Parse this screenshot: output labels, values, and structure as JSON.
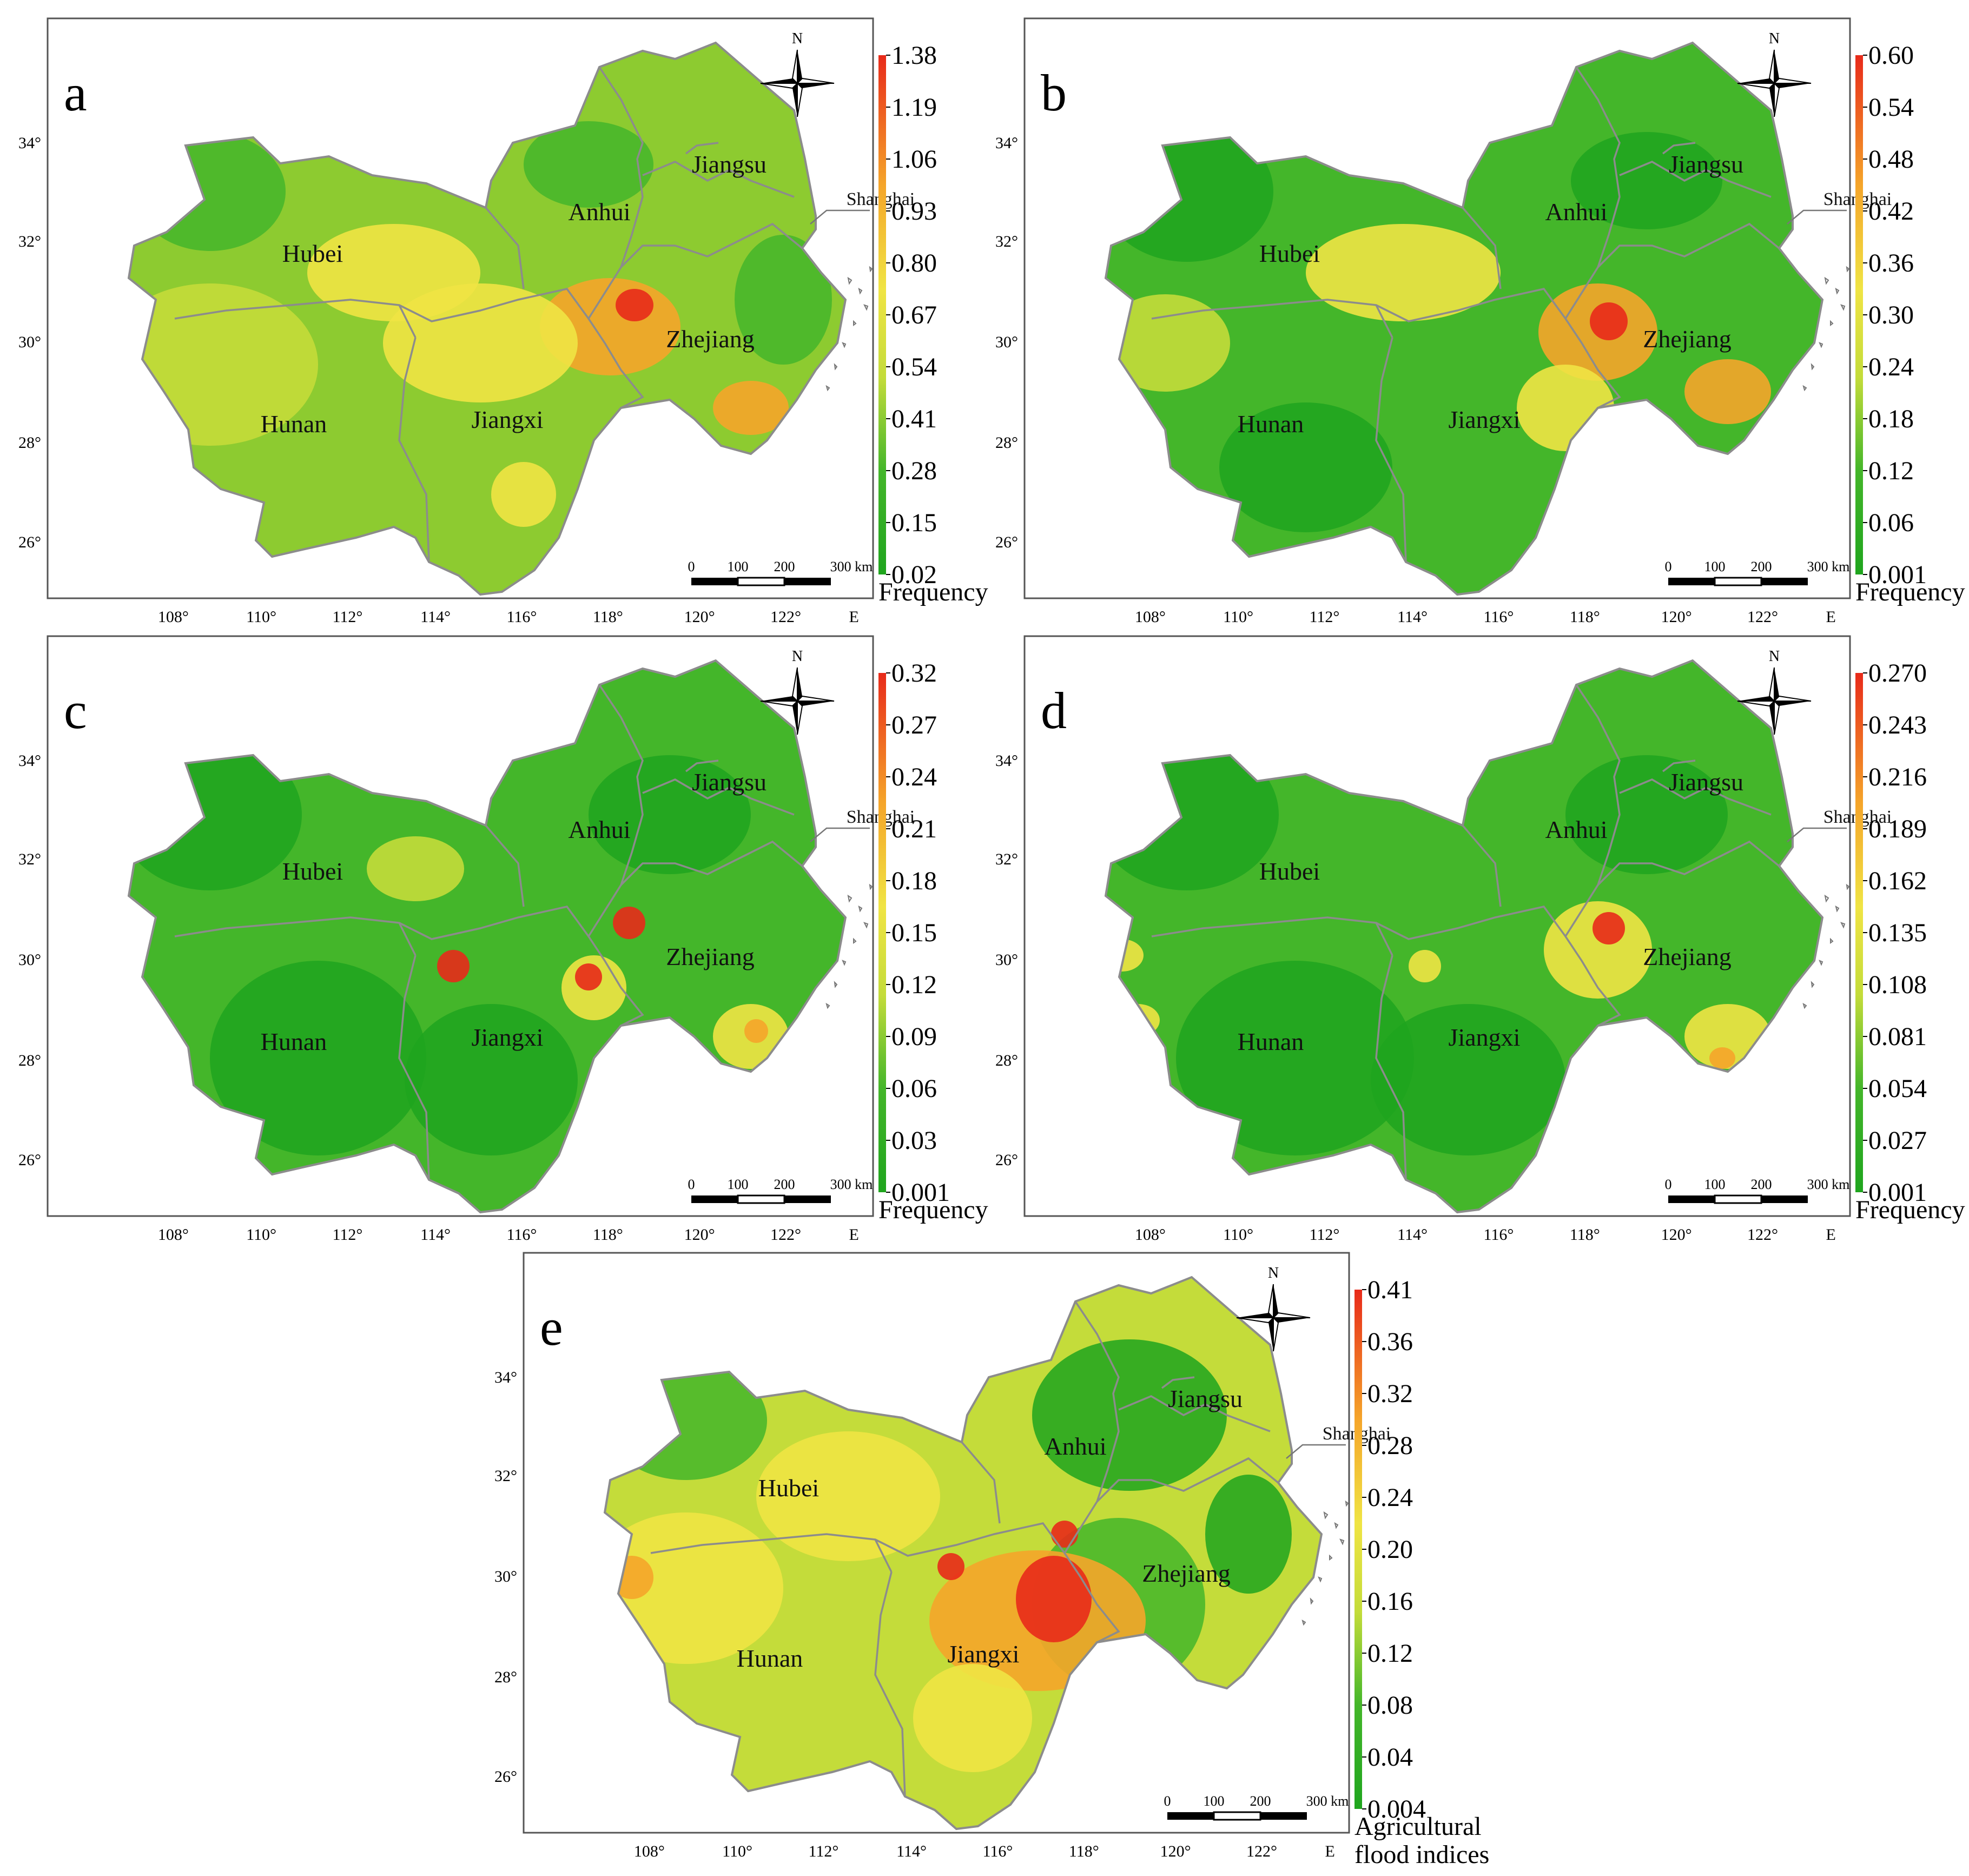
{
  "axes": {
    "lon_labels": [
      "108°",
      "110°",
      "112°",
      "114°",
      "116°",
      "118°",
      "120°",
      "122°"
    ],
    "lon_unit": "E",
    "lat_labels": [
      "34°",
      "32°",
      "30°",
      "28°",
      "26°"
    ]
  },
  "map_labels": {
    "provinces": [
      "Hubei",
      "Anhui",
      "Jiangsu",
      "Shanghai",
      "Zhejiang",
      "Hunan",
      "Jiangxi"
    ],
    "north": "N",
    "scale": [
      "0",
      "100",
      "200",
      "300 km"
    ]
  },
  "colors": {
    "dark_green": "#1fa51e",
    "green": "#44b62a",
    "light_green": "#8dcb30",
    "yellow_green": "#c4dc3a",
    "yellow": "#f0e444",
    "orange": "#f5a52a",
    "red": "#e82a1a",
    "boundary": "#8c8c8c"
  },
  "panels": [
    {
      "letter": "a",
      "legend_title": "Frequency",
      "legend_title_2": "",
      "legend_ticks": [
        "1.38",
        "1.19",
        "1.06",
        "0.93",
        "0.80",
        "0.67",
        "0.54",
        "0.41",
        "0.28",
        "0.15",
        "0.02"
      ]
    },
    {
      "letter": "b",
      "legend_title": "Frequency",
      "legend_title_2": "",
      "legend_ticks": [
        "0.60",
        "0.54",
        "0.48",
        "0.42",
        "0.36",
        "0.30",
        "0.24",
        "0.18",
        "0.12",
        "0.06",
        "0.001"
      ]
    },
    {
      "letter": "c",
      "legend_title": "Frequency",
      "legend_title_2": "",
      "legend_ticks": [
        "0.32",
        "0.27",
        "0.24",
        "0.21",
        "0.18",
        "0.15",
        "0.12",
        "0.09",
        "0.06",
        "0.03",
        "0.001"
      ]
    },
    {
      "letter": "d",
      "legend_title": "Frequency",
      "legend_title_2": "",
      "legend_ticks": [
        "0.270",
        "0.243",
        "0.216",
        "0.189",
        "0.162",
        "0.135",
        "0.108",
        "0.081",
        "0.054",
        "0.027",
        "0.001"
      ]
    },
    {
      "letter": "e",
      "legend_title": "Agricultural",
      "legend_title_2": "flood  indices",
      "legend_ticks": [
        "0.41",
        "0.36",
        "0.32",
        "0.28",
        "0.24",
        "0.20",
        "0.16",
        "0.12",
        "0.08",
        "0.04",
        "0.004"
      ]
    }
  ]
}
